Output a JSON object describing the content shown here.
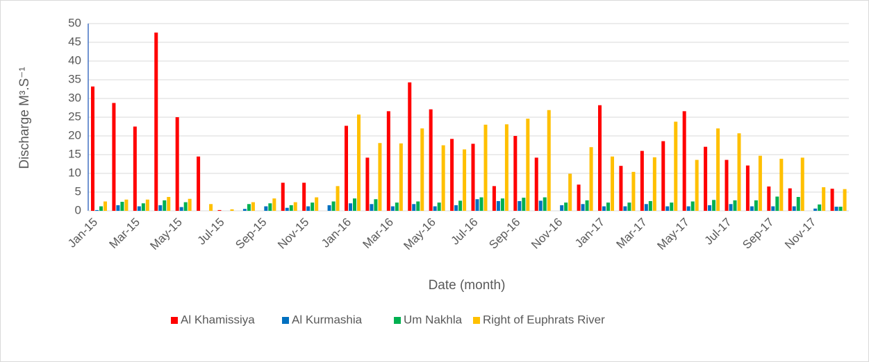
{
  "chart_data": {
    "type": "bar",
    "y_label": "Discharge M³.S⁻¹",
    "x_label": "Date (month)",
    "categories": [
      "Jan-15",
      null,
      "Mar-15",
      null,
      "May-15",
      null,
      "Jul-15",
      null,
      "Sep-15",
      null,
      "Nov-15",
      null,
      "Jan-16",
      null,
      "Mar-16",
      null,
      "May-16",
      null,
      "Jul-16",
      null,
      "Sep-16",
      null,
      "Nov-16",
      null,
      "Jan-17",
      null,
      "Mar-17",
      null,
      "May-17",
      null,
      "Jul-17",
      null,
      "Sep-17",
      null,
      "Nov-17",
      null
    ],
    "series": [
      {
        "name": "Al Khamissiya",
        "color": "#ff0000",
        "values": [
          33.2,
          28.8,
          22.5,
          47.6,
          25,
          14.5,
          0.2,
          0,
          0,
          7.5,
          7.5,
          0,
          22.7,
          14.2,
          26.6,
          34.3,
          27.1,
          19.2,
          17.9,
          6.6,
          20.0,
          14.2,
          0,
          7.0,
          28.2,
          12.0,
          16.0,
          18.6,
          26.6,
          17.1,
          13.6,
          12.1,
          6.5,
          6.0,
          0,
          5.9
        ]
      },
      {
        "name": "Al Kurmashia",
        "color": "#0070c0",
        "values": [
          0.2,
          1.5,
          1.2,
          1.5,
          1.0,
          0,
          0,
          0.5,
          1.2,
          0.8,
          1.2,
          1.5,
          2.0,
          1.8,
          1.2,
          1.8,
          1.2,
          1.5,
          3.1,
          2.6,
          2.6,
          2.7,
          1.5,
          1.8,
          1.2,
          1.2,
          1.8,
          1.2,
          1.2,
          1.5,
          1.8,
          1.2,
          1.2,
          1.2,
          0.6,
          1.1
        ]
      },
      {
        "name": "Um Nakhla",
        "color": "#00b050",
        "values": [
          1.2,
          2.4,
          2.0,
          2.8,
          2.3,
          0,
          0,
          1.8,
          2.0,
          1.5,
          2.2,
          2.5,
          3.3,
          3.1,
          2.2,
          2.5,
          2.2,
          2.7,
          3.6,
          3.3,
          3.5,
          3.6,
          2.2,
          2.8,
          2.2,
          2.2,
          2.6,
          2.2,
          2.5,
          2.9,
          2.8,
          2.8,
          3.8,
          3.7,
          1.7,
          1.1
        ]
      },
      {
        "name": "Right of Euphrats River",
        "color": "#ffc000",
        "values": [
          2.5,
          3.0,
          3.0,
          3.7,
          3.2,
          1.8,
          0.4,
          2.3,
          3.3,
          2.3,
          3.6,
          6.6,
          25.7,
          18.1,
          18.0,
          22.0,
          17.5,
          16.4,
          23.0,
          23.1,
          24.6,
          26.9,
          9.9,
          17.0,
          14.5,
          10.4,
          14.3,
          23.8,
          13.6,
          22.0,
          20.7,
          14.7,
          13.9,
          14.2,
          6.3,
          5.8
        ]
      }
    ],
    "ylim": [
      0,
      50
    ],
    "yticks": [
      0,
      5,
      10,
      15,
      20,
      25,
      30,
      35,
      40,
      45,
      50
    ],
    "grid": true,
    "legend": "bottom"
  }
}
